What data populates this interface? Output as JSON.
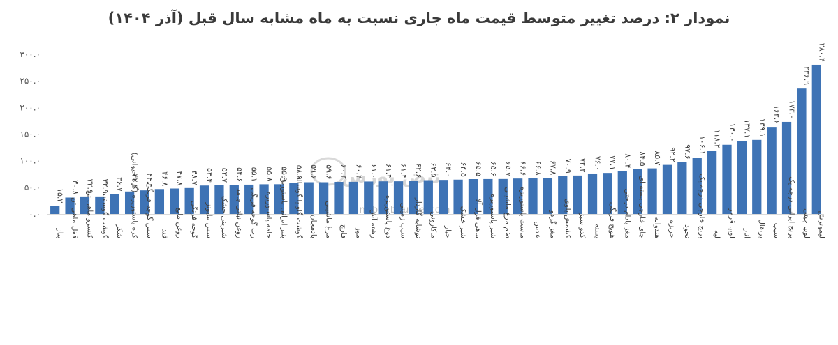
{
  "chart_data": {
    "type": "bar",
    "title": "نمودار ۲: درصد تغییر متوسط قیمت ماه جاری نسبت به ماه مشابه سال قبل (آذر ۱۴۰۴)",
    "xlabel": "",
    "ylabel": "",
    "ylim": [
      0,
      300
    ],
    "yticks": [
      0,
      50,
      100,
      150,
      200,
      250,
      300
    ],
    "ytick_labels": [
      "۰.۰",
      "۵۰.۰",
      "۱۰۰.۰",
      "۱۵۰.۰",
      "۲۰۰.۰",
      "۲۵۰.۰",
      "۳۰۰.۰"
    ],
    "grid": false,
    "legend": "none",
    "bar_color": "#3e73b5",
    "categories": [
      "پیاز",
      "قفل ماهی تن",
      "کنسرو ماهی تن",
      "گوشت گوسفند",
      "شکر",
      "کره پاستوریزه (گره حیوانی)",
      "سس گوجه فرنگی",
      "قند",
      "روغن مایع",
      "گوجه فرنگی",
      "سس مایونز",
      "شیرینی خشک",
      "روغن نباتی جامد",
      "رب گوجه فرنگی",
      "خامه پاستوریزه",
      "پنیر ایرانی پاستوریزه",
      "گوشت گاو یا گوساله",
      "بادمجان",
      "مرغ ماشینی",
      "قارچ",
      "موز",
      "رشته آش",
      "دوغ پاستوریزه",
      "سیب زمینی",
      "نوشابه گازدار",
      "ماکارونی",
      "خیار",
      "شیر خشک",
      "ماهی قزل آلا",
      "شیر پاستوریزه",
      "تخم مرغ ماشینی",
      "ماست پاستوریزه",
      "عدس",
      "مغز گردو",
      "کشمش پلوی",
      "کدو سبز",
      "پسته",
      "هویج فرنگی",
      "مغز بادام درختی",
      "چای خارجی بسته ای",
      "هندوانه",
      "خربزه",
      "نخود",
      "برنج خارجی درجه یک",
      "لپه",
      "لوبیا قرمز",
      "انار",
      "پرتقال",
      "سیب",
      "برنج ایرانی درجه یک",
      "لوبیا چیتی",
      "لیموترش"
    ],
    "values": [
      15.3,
      30.8,
      32.9,
      32.9,
      36.7,
      42.2,
      44.3,
      46.8,
      47.8,
      48.7,
      53.4,
      53.7,
      54.6,
      55.1,
      55.8,
      55.9,
      58.9,
      59.6,
      59.6,
      60.3,
      60.4,
      61.0,
      61.3,
      61.4,
      62.6,
      63.5,
      64.0,
      64.5,
      65.5,
      65.6,
      65.7,
      66.6,
      66.8,
      67.8,
      70.9,
      72.2,
      76.0,
      77.1,
      80.4,
      84.5,
      85.7,
      92.2,
      97.6,
      106.1,
      118.2,
      130.0,
      137.1,
      139.1,
      163.6,
      173.0,
      236.9,
      280.4
    ],
    "data_labels": [
      "۱۵.۳",
      "۳۰.۸",
      "۳۲.۹",
      "۳۲.۹",
      "۳۶.۷",
      "۴۲.۲",
      "۴۴.۳",
      "۴۶.۸",
      "۴۷.۸",
      "۴۸.۷",
      "۵۳.۴",
      "۵۳.۷",
      "۵۴.۶",
      "۵۵.۱",
      "۵۵.۸",
      "۵۵.۹",
      "۵۸.۹",
      "۵۹.۶",
      "۵۹.۶",
      "۶۰.۳",
      "۶۰.۴",
      "۶۱.۰",
      "۶۱.۳",
      "۶۱.۴",
      "۶۲.۶",
      "۶۳.۵",
      "۶۴.۰",
      "۶۴.۵",
      "۶۵.۵",
      "۶۵.۶",
      "۶۵.۷",
      "۶۶.۶",
      "۶۶.۸",
      "۶۷.۸",
      "۷۰.۹",
      "۷۲.۲",
      "۷۶.۰",
      "۷۷.۱",
      "۸۰.۴",
      "۸۴.۵",
      "۸۵.۷",
      "۹۲.۲",
      "۹۷.۶",
      "۱۰۶.۱",
      "۱۱۸.۲",
      "۱۳۰.۰",
      "۱۳۷.۱",
      "۱۳۹.۱",
      "۱۶۳.۶",
      "۱۷۳.۰",
      "۲۳۶.۹",
      "۲۸۰.۴"
    ]
  },
  "watermark": {
    "logo_text": "نبض بورس",
    "url": "nabzebourse.com"
  }
}
